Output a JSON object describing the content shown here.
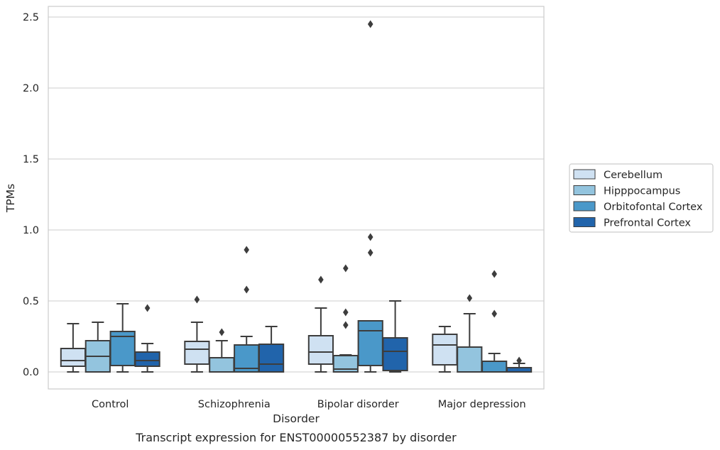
{
  "chart_data": {
    "type": "box",
    "xlabel": "Disorder",
    "ylabel": "TPMs",
    "caption": "Transcript expression for ENST00000552387 by disorder",
    "ylim": [
      -0.12,
      2.58
    ],
    "yticks": [
      "0.0",
      "0.5",
      "1.0",
      "1.5",
      "2.0",
      "2.5"
    ],
    "grid": true,
    "legend_position": "right",
    "categories": [
      "Control",
      "Schizophrenia",
      "Bipolar disorder",
      "Major depression"
    ],
    "series": [
      {
        "name": "Cerebellum",
        "color": "#cfe1f2",
        "boxes": [
          {
            "q1": 0.04,
            "median": 0.08,
            "q3": 0.165,
            "low": 0.0,
            "high": 0.34,
            "outliers": []
          },
          {
            "q1": 0.055,
            "median": 0.16,
            "q3": 0.215,
            "low": 0.0,
            "high": 0.35,
            "outliers": [
              0.51
            ]
          },
          {
            "q1": 0.055,
            "median": 0.14,
            "q3": 0.255,
            "low": 0.0,
            "high": 0.45,
            "outliers": [
              0.65
            ]
          },
          {
            "q1": 0.05,
            "median": 0.19,
            "q3": 0.265,
            "low": 0.0,
            "high": 0.32,
            "outliers": []
          }
        ]
      },
      {
        "name": "Hipppocampus",
        "color": "#93c4de",
        "boxes": [
          {
            "q1": 0.0,
            "median": 0.11,
            "q3": 0.22,
            "low": 0.0,
            "high": 0.35,
            "outliers": []
          },
          {
            "q1": 0.0,
            "median": 0.0,
            "q3": 0.1,
            "low": 0.0,
            "high": 0.22,
            "outliers": [
              0.28
            ]
          },
          {
            "q1": 0.0,
            "median": 0.02,
            "q3": 0.115,
            "low": 0.0,
            "high": 0.12,
            "outliers": [
              0.33,
              0.42,
              0.73
            ]
          },
          {
            "q1": 0.0,
            "median": 0.0,
            "q3": 0.175,
            "low": 0.0,
            "high": 0.41,
            "outliers": [
              0.52
            ]
          }
        ]
      },
      {
        "name": "Orbitofontal Cortex",
        "color": "#4a98c9",
        "boxes": [
          {
            "q1": 0.045,
            "median": 0.25,
            "q3": 0.285,
            "low": 0.0,
            "high": 0.48,
            "outliers": []
          },
          {
            "q1": 0.0,
            "median": 0.025,
            "q3": 0.19,
            "low": 0.0,
            "high": 0.25,
            "outliers": [
              0.58,
              0.86
            ]
          },
          {
            "q1": 0.045,
            "median": 0.29,
            "q3": 0.36,
            "low": 0.0,
            "high": 0.36,
            "outliers": [
              0.84,
              0.95,
              2.45
            ]
          },
          {
            "q1": 0.0,
            "median": 0.0,
            "q3": 0.075,
            "low": 0.0,
            "high": 0.13,
            "outliers": [
              0.41,
              0.69
            ]
          }
        ]
      },
      {
        "name": "Prefrontal Cortex",
        "color": "#2164ab",
        "boxes": [
          {
            "q1": 0.04,
            "median": 0.08,
            "q3": 0.14,
            "low": 0.0,
            "high": 0.2,
            "outliers": [
              0.45
            ]
          },
          {
            "q1": 0.0,
            "median": 0.055,
            "q3": 0.195,
            "low": 0.0,
            "high": 0.32,
            "outliers": []
          },
          {
            "q1": 0.01,
            "median": 0.145,
            "q3": 0.24,
            "low": 0.0,
            "high": 0.5,
            "outliers": []
          },
          {
            "q1": 0.0,
            "median": 0.0,
            "q3": 0.03,
            "low": 0.0,
            "high": 0.06,
            "outliers": [
              0.08
            ]
          }
        ]
      }
    ]
  }
}
